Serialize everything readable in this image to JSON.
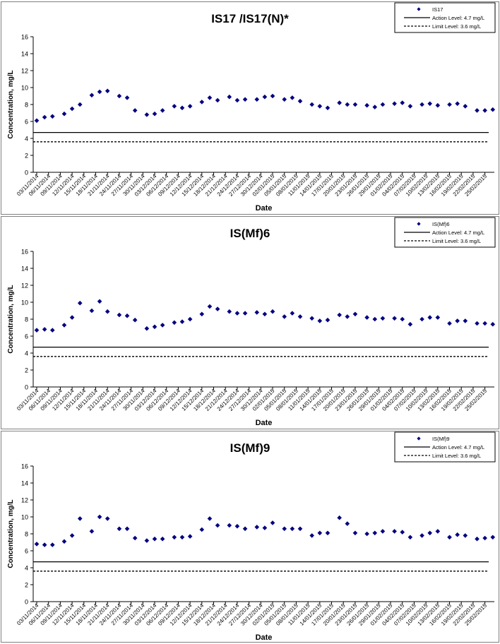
{
  "legend_labels": {
    "action": "Action Level: 4.7 mg/L",
    "limit": "Limit Level: 3.6 mg/L"
  },
  "axis": {
    "ylabel": "Concentration, mg/L",
    "xlabel": "Date"
  },
  "colors": {
    "marker": "#000080",
    "lines": "#000000",
    "panel_border": "#808080"
  },
  "chart_data": [
    {
      "type": "scatter",
      "title": "IS17 /IS17(N)*",
      "series_name": "IS17",
      "xlabel": "Date",
      "ylabel": "Concentration, mg/L",
      "ylim": [
        0,
        16
      ],
      "yticks": [
        0,
        2,
        4,
        6,
        8,
        10,
        12,
        14,
        16
      ],
      "x_tick_labels": [
        "03/11/2014",
        "06/11/2014",
        "09/11/2014",
        "12/11/2014",
        "15/11/2014",
        "18/11/2014",
        "21/11/2014",
        "24/11/2014",
        "27/11/2014",
        "30/11/2014",
        "03/12/2014",
        "06/12/2014",
        "09/12/2014",
        "12/12/2014",
        "15/12/2014",
        "18/12/2014",
        "21/12/2014",
        "24/12/2014",
        "27/12/2014",
        "30/12/2014",
        "02/01/2015",
        "05/01/2015",
        "08/01/2015",
        "11/01/2015",
        "14/01/2015",
        "17/01/2015",
        "20/01/2015",
        "23/01/2015",
        "26/01/2015",
        "29/01/2015",
        "01/02/2015",
        "04/02/2015",
        "07/02/2015",
        "10/02/2015",
        "13/02/2015",
        "16/02/2015",
        "19/02/2015",
        "22/02/2015",
        "25/02/2015"
      ],
      "reference_lines": [
        {
          "name": "Action Level: 4.7 mg/L",
          "value": 4.7,
          "style": "solid"
        },
        {
          "name": "Limit Level: 3.6 mg/L",
          "value": 3.6,
          "style": "dashed"
        }
      ],
      "legend": "top-right",
      "points": [
        {
          "x": "03/11/2014",
          "y": 6.1
        },
        {
          "x": "05/11/2014",
          "y": 6.5
        },
        {
          "x": "07/11/2014",
          "y": 6.6
        },
        {
          "x": "10/11/2014",
          "y": 6.9
        },
        {
          "x": "12/11/2014",
          "y": 7.5
        },
        {
          "x": "14/11/2014",
          "y": 8.0
        },
        {
          "x": "17/11/2014",
          "y": 9.1
        },
        {
          "x": "19/11/2014",
          "y": 9.5
        },
        {
          "x": "21/11/2014",
          "y": 9.6
        },
        {
          "x": "24/11/2014",
          "y": 9.0
        },
        {
          "x": "26/11/2014",
          "y": 8.8
        },
        {
          "x": "28/11/2014",
          "y": 7.3
        },
        {
          "x": "01/12/2014",
          "y": 6.8
        },
        {
          "x": "03/12/2014",
          "y": 6.9
        },
        {
          "x": "05/12/2014",
          "y": 7.3
        },
        {
          "x": "08/12/2014",
          "y": 7.8
        },
        {
          "x": "10/12/2014",
          "y": 7.6
        },
        {
          "x": "12/12/2014",
          "y": 7.8
        },
        {
          "x": "15/12/2014",
          "y": 8.3
        },
        {
          "x": "17/12/2014",
          "y": 8.8
        },
        {
          "x": "19/12/2014",
          "y": 8.5
        },
        {
          "x": "22/12/2014",
          "y": 8.9
        },
        {
          "x": "24/12/2014",
          "y": 8.5
        },
        {
          "x": "26/12/2014",
          "y": 8.6
        },
        {
          "x": "29/12/2014",
          "y": 8.6
        },
        {
          "x": "31/12/2014",
          "y": 8.9
        },
        {
          "x": "02/01/2015",
          "y": 9.0
        },
        {
          "x": "05/01/2015",
          "y": 8.6
        },
        {
          "x": "07/01/2015",
          "y": 8.8
        },
        {
          "x": "09/01/2015",
          "y": 8.4
        },
        {
          "x": "12/01/2015",
          "y": 8.0
        },
        {
          "x": "14/01/2015",
          "y": 7.8
        },
        {
          "x": "16/01/2015",
          "y": 7.6
        },
        {
          "x": "19/01/2015",
          "y": 8.2
        },
        {
          "x": "21/01/2015",
          "y": 8.0
        },
        {
          "x": "23/01/2015",
          "y": 8.0
        },
        {
          "x": "26/01/2015",
          "y": 7.9
        },
        {
          "x": "28/01/2015",
          "y": 7.7
        },
        {
          "x": "30/01/2015",
          "y": 8.0
        },
        {
          "x": "02/02/2015",
          "y": 8.1
        },
        {
          "x": "04/02/2015",
          "y": 8.2
        },
        {
          "x": "06/02/2015",
          "y": 7.8
        },
        {
          "x": "09/02/2015",
          "y": 8.0
        },
        {
          "x": "11/02/2015",
          "y": 8.1
        },
        {
          "x": "13/02/2015",
          "y": 7.9
        },
        {
          "x": "16/02/2015",
          "y": 8.0
        },
        {
          "x": "18/02/2015",
          "y": 8.1
        },
        {
          "x": "20/02/2015",
          "y": 7.8
        },
        {
          "x": "23/02/2015",
          "y": 7.3
        },
        {
          "x": "25/02/2015",
          "y": 7.3
        },
        {
          "x": "27/02/2015",
          "y": 7.4
        }
      ]
    },
    {
      "type": "scatter",
      "title": "IS(Mf)6",
      "series_name": "IS(Mf)6",
      "xlabel": "Date",
      "ylabel": "Concentration, mg/L",
      "ylim": [
        0,
        16
      ],
      "yticks": [
        0,
        2,
        4,
        6,
        8,
        10,
        12,
        14,
        16
      ],
      "x_tick_labels": [
        "03/11/2014",
        "06/11/2014",
        "09/11/2014",
        "12/11/2014",
        "15/11/2014",
        "18/11/2014",
        "21/11/2014",
        "24/11/2014",
        "27/11/2014",
        "30/11/2014",
        "03/12/2014",
        "06/12/2014",
        "09/12/2014",
        "12/12/2014",
        "15/12/2014",
        "18/12/2014",
        "21/12/2014",
        "24/12/2014",
        "27/12/2014",
        "30/12/2014",
        "02/01/2015",
        "05/01/2015",
        "08/01/2015",
        "11/01/2015",
        "14/01/2015",
        "17/01/2015",
        "20/01/2015",
        "23/01/2015",
        "26/01/2015",
        "29/01/2015",
        "01/02/2015",
        "04/02/2015",
        "07/02/2015",
        "10/02/2015",
        "13/02/2015",
        "16/02/2015",
        "19/02/2015",
        "22/02/2015",
        "25/02/2015"
      ],
      "reference_lines": [
        {
          "name": "Action Level: 4.7 mg/L",
          "value": 4.7,
          "style": "solid"
        },
        {
          "name": "Limit Level: 3.6 mg/L",
          "value": 3.6,
          "style": "dashed"
        }
      ],
      "legend": "top-right",
      "points": [
        {
          "x": "03/11/2014",
          "y": 6.7
        },
        {
          "x": "05/11/2014",
          "y": 6.8
        },
        {
          "x": "07/11/2014",
          "y": 6.7
        },
        {
          "x": "10/11/2014",
          "y": 7.3
        },
        {
          "x": "12/11/2014",
          "y": 8.2
        },
        {
          "x": "14/11/2014",
          "y": 9.9
        },
        {
          "x": "17/11/2014",
          "y": 9.0
        },
        {
          "x": "19/11/2014",
          "y": 10.1
        },
        {
          "x": "21/11/2014",
          "y": 8.9
        },
        {
          "x": "24/11/2014",
          "y": 8.5
        },
        {
          "x": "26/11/2014",
          "y": 8.4
        },
        {
          "x": "28/11/2014",
          "y": 7.9
        },
        {
          "x": "01/12/2014",
          "y": 6.9
        },
        {
          "x": "03/12/2014",
          "y": 7.1
        },
        {
          "x": "05/12/2014",
          "y": 7.3
        },
        {
          "x": "08/12/2014",
          "y": 7.6
        },
        {
          "x": "10/12/2014",
          "y": 7.7
        },
        {
          "x": "12/12/2014",
          "y": 8.0
        },
        {
          "x": "15/12/2014",
          "y": 8.6
        },
        {
          "x": "17/12/2014",
          "y": 9.5
        },
        {
          "x": "19/12/2014",
          "y": 9.2
        },
        {
          "x": "22/12/2014",
          "y": 8.9
        },
        {
          "x": "24/12/2014",
          "y": 8.7
        },
        {
          "x": "26/12/2014",
          "y": 8.7
        },
        {
          "x": "29/12/2014",
          "y": 8.8
        },
        {
          "x": "31/12/2014",
          "y": 8.6
        },
        {
          "x": "02/01/2015",
          "y": 8.9
        },
        {
          "x": "05/01/2015",
          "y": 8.3
        },
        {
          "x": "07/01/2015",
          "y": 8.7
        },
        {
          "x": "09/01/2015",
          "y": 8.3
        },
        {
          "x": "12/01/2015",
          "y": 8.1
        },
        {
          "x": "14/01/2015",
          "y": 7.8
        },
        {
          "x": "16/01/2015",
          "y": 7.9
        },
        {
          "x": "19/01/2015",
          "y": 8.5
        },
        {
          "x": "21/01/2015",
          "y": 8.3
        },
        {
          "x": "23/01/2015",
          "y": 8.6
        },
        {
          "x": "26/01/2015",
          "y": 8.2
        },
        {
          "x": "28/01/2015",
          "y": 8.0
        },
        {
          "x": "30/01/2015",
          "y": 8.1
        },
        {
          "x": "02/02/2015",
          "y": 8.1
        },
        {
          "x": "04/02/2015",
          "y": 8.0
        },
        {
          "x": "06/02/2015",
          "y": 7.4
        },
        {
          "x": "09/02/2015",
          "y": 8.0
        },
        {
          "x": "11/02/2015",
          "y": 8.2
        },
        {
          "x": "13/02/2015",
          "y": 8.2
        },
        {
          "x": "16/02/2015",
          "y": 7.5
        },
        {
          "x": "18/02/2015",
          "y": 7.8
        },
        {
          "x": "20/02/2015",
          "y": 7.8
        },
        {
          "x": "23/02/2015",
          "y": 7.5
        },
        {
          "x": "25/02/2015",
          "y": 7.5
        },
        {
          "x": "27/02/2015",
          "y": 7.4
        }
      ]
    },
    {
      "type": "scatter",
      "title": "IS(Mf)9",
      "series_name": "IS(Mf)9",
      "xlabel": "Date",
      "ylabel": "Concentration, mg/L",
      "ylim": [
        0,
        16
      ],
      "yticks": [
        0,
        2,
        4,
        6,
        8,
        10,
        12,
        14,
        16
      ],
      "x_tick_labels": [
        "03/11/2014",
        "06/11/2014",
        "09/11/2014",
        "12/11/2014",
        "15/11/2014",
        "18/11/2014",
        "21/11/2014",
        "24/11/2014",
        "27/11/2014",
        "30/11/2014",
        "03/12/2014",
        "06/12/2014",
        "09/12/2014",
        "12/12/2014",
        "15/12/2014",
        "18/12/2014",
        "21/12/2014",
        "24/12/2014",
        "27/12/2014",
        "30/12/2014",
        "02/01/2015",
        "05/01/2015",
        "08/01/2015",
        "11/01/2015",
        "14/01/2015",
        "17/01/2015",
        "20/01/2015",
        "23/01/2015",
        "26/01/2015",
        "29/01/2015",
        "01/02/2015",
        "04/02/2015",
        "07/02/2015",
        "10/02/2015",
        "13/02/2015",
        "16/02/2015",
        "19/02/2015",
        "22/02/2015",
        "25/02/2015"
      ],
      "reference_lines": [
        {
          "name": "Action Level: 4.7 mg/L",
          "value": 4.7,
          "style": "solid"
        },
        {
          "name": "Limit Level: 3.6 mg/L",
          "value": 3.6,
          "style": "dashed"
        }
      ],
      "legend": "top-right",
      "points": [
        {
          "x": "03/11/2014",
          "y": 6.8
        },
        {
          "x": "05/11/2014",
          "y": 6.7
        },
        {
          "x": "07/11/2014",
          "y": 6.7
        },
        {
          "x": "10/11/2014",
          "y": 7.1
        },
        {
          "x": "12/11/2014",
          "y": 7.8
        },
        {
          "x": "14/11/2014",
          "y": 9.8
        },
        {
          "x": "17/11/2014",
          "y": 8.3
        },
        {
          "x": "19/11/2014",
          "y": 10.0
        },
        {
          "x": "21/11/2014",
          "y": 9.8
        },
        {
          "x": "24/11/2014",
          "y": 8.6
        },
        {
          "x": "26/11/2014",
          "y": 8.6
        },
        {
          "x": "28/11/2014",
          "y": 7.5
        },
        {
          "x": "01/12/2014",
          "y": 7.2
        },
        {
          "x": "03/12/2014",
          "y": 7.4
        },
        {
          "x": "05/12/2014",
          "y": 7.4
        },
        {
          "x": "08/12/2014",
          "y": 7.6
        },
        {
          "x": "10/12/2014",
          "y": 7.6
        },
        {
          "x": "12/12/2014",
          "y": 7.7
        },
        {
          "x": "15/12/2014",
          "y": 8.5
        },
        {
          "x": "17/12/2014",
          "y": 9.8
        },
        {
          "x": "19/12/2014",
          "y": 9.0
        },
        {
          "x": "22/12/2014",
          "y": 9.0
        },
        {
          "x": "24/12/2014",
          "y": 8.9
        },
        {
          "x": "26/12/2014",
          "y": 8.6
        },
        {
          "x": "29/12/2014",
          "y": 8.8
        },
        {
          "x": "31/12/2014",
          "y": 8.7
        },
        {
          "x": "02/01/2015",
          "y": 9.3
        },
        {
          "x": "05/01/2015",
          "y": 8.6
        },
        {
          "x": "07/01/2015",
          "y": 8.6
        },
        {
          "x": "09/01/2015",
          "y": 8.6
        },
        {
          "x": "12/01/2015",
          "y": 7.8
        },
        {
          "x": "14/01/2015",
          "y": 8.1
        },
        {
          "x": "16/01/2015",
          "y": 8.1
        },
        {
          "x": "19/01/2015",
          "y": 9.9
        },
        {
          "x": "21/01/2015",
          "y": 9.2
        },
        {
          "x": "23/01/2015",
          "y": 8.1
        },
        {
          "x": "26/01/2015",
          "y": 8.0
        },
        {
          "x": "28/01/2015",
          "y": 8.1
        },
        {
          "x": "30/01/2015",
          "y": 8.3
        },
        {
          "x": "02/02/2015",
          "y": 8.3
        },
        {
          "x": "04/02/2015",
          "y": 8.2
        },
        {
          "x": "06/02/2015",
          "y": 7.6
        },
        {
          "x": "09/02/2015",
          "y": 7.8
        },
        {
          "x": "11/02/2015",
          "y": 8.1
        },
        {
          "x": "13/02/2015",
          "y": 8.3
        },
        {
          "x": "16/02/2015",
          "y": 7.6
        },
        {
          "x": "18/02/2015",
          "y": 7.9
        },
        {
          "x": "20/02/2015",
          "y": 7.8
        },
        {
          "x": "23/02/2015",
          "y": 7.4
        },
        {
          "x": "25/02/2015",
          "y": 7.5
        },
        {
          "x": "27/02/2015",
          "y": 7.6
        }
      ]
    }
  ]
}
